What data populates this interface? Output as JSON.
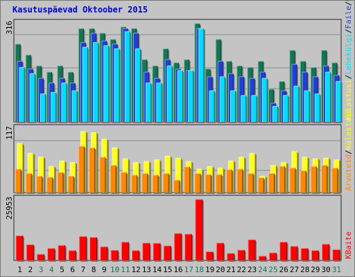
{
  "title": "Kasutuspäevad Oktoober 2015",
  "colors": {
    "background": "#c4c4c4",
    "title": "#0000cc",
    "visits": "#117755",
    "pages": "#1f3fd8",
    "files": "#00ddff",
    "hits": "#ffff22",
    "sites": "#ff8800",
    "kbytes": "#ff0000",
    "day_weekday": "#000000",
    "day_weekend": "#117755"
  },
  "chart_data": [
    {
      "type": "bar",
      "title": "Kasutuspäevad Oktoober 2015",
      "categories": [
        "1",
        "2",
        "3",
        "4",
        "5",
        "6",
        "7",
        "8",
        "9",
        "10",
        "11",
        "12",
        "13",
        "14",
        "15",
        "16",
        "17",
        "18",
        "19",
        "20",
        "21",
        "22",
        "23",
        "24",
        "25",
        "26",
        "27",
        "28",
        "29",
        "30",
        "31"
      ],
      "weekend_days": [
        "3",
        "4",
        "10",
        "11",
        "17",
        "18",
        "24",
        "25",
        "31"
      ],
      "ylim": [
        0,
        316
      ],
      "y_tick_label": "316",
      "legend": [
        "Pöördumisi",
        "Faile",
        "Lehekülgi",
        "Külastusi"
      ],
      "legend_placement": "right",
      "series": [
        {
          "name": "Pöördumisi",
          "values": [
            250,
            215,
            180,
            160,
            180,
            160,
            300,
            300,
            285,
            265,
            305,
            300,
            200,
            180,
            235,
            190,
            200,
            316,
            170,
            265,
            195,
            180,
            175,
            195,
            105,
            130,
            230,
            195,
            175,
            230,
            190
          ]
        },
        {
          "name": "Faile",
          "values": [
            195,
            170,
            140,
            125,
            140,
            125,
            255,
            285,
            260,
            250,
            300,
            285,
            160,
            140,
            200,
            170,
            165,
            300,
            145,
            195,
            155,
            145,
            140,
            160,
            60,
            100,
            185,
            160,
            145,
            180,
            150
          ]
        },
        {
          "name": "Lehekülgi",
          "values": [
            175,
            155,
            90,
            95,
            125,
            100,
            240,
            255,
            245,
            235,
            290,
            235,
            125,
            125,
            180,
            165,
            165,
            300,
            100,
            145,
            100,
            85,
            85,
            140,
            50,
            85,
            115,
            100,
            90,
            160,
            130
          ]
        }
      ]
    },
    {
      "type": "bar",
      "categories": [
        "1",
        "2",
        "3",
        "4",
        "5",
        "6",
        "7",
        "8",
        "9",
        "10",
        "11",
        "12",
        "13",
        "14",
        "15",
        "16",
        "17",
        "18",
        "19",
        "20",
        "21",
        "22",
        "23",
        "24",
        "25",
        "26",
        "27",
        "28",
        "29",
        "30",
        "31"
      ],
      "ylim": [
        0,
        117
      ],
      "y_tick_label": "117",
      "legend": [
        "Külastusi",
        "Arvuteid"
      ],
      "legend_placement": "right",
      "series": [
        {
          "name": "Külastusi",
          "values": [
            90,
            72,
            65,
            48,
            58,
            55,
            112,
            110,
            98,
            82,
            62,
            55,
            57,
            60,
            67,
            63,
            57,
            43,
            48,
            45,
            58,
            65,
            72,
            30,
            50,
            55,
            75,
            65,
            62,
            63,
            60
          ]
        },
        {
          "name": "Arvuteid",
          "values": [
            43,
            35,
            30,
            28,
            37,
            30,
            85,
            82,
            65,
            50,
            37,
            32,
            35,
            32,
            35,
            23,
            47,
            35,
            33,
            33,
            42,
            43,
            35,
            27,
            35,
            48,
            45,
            40,
            48,
            50,
            45
          ]
        }
      ]
    },
    {
      "type": "bar",
      "categories": [
        "1",
        "2",
        "3",
        "4",
        "5",
        "6",
        "7",
        "8",
        "9",
        "10",
        "11",
        "12",
        "13",
        "14",
        "15",
        "16",
        "17",
        "18",
        "19",
        "20",
        "21",
        "22",
        "23",
        "24",
        "25",
        "26",
        "27",
        "28",
        "29",
        "30",
        "31"
      ],
      "ylim": [
        0,
        25953
      ],
      "y_tick_label": "25953",
      "legend": [
        "KBaite"
      ],
      "legend_placement": "right",
      "series": [
        {
          "name": "KBaite",
          "values": [
            10500,
            6700,
            2600,
            5100,
            6400,
            4200,
            10200,
            9800,
            5800,
            4300,
            7800,
            4200,
            7400,
            7300,
            6200,
            11500,
            11200,
            25953,
            3700,
            7400,
            3000,
            4400,
            8800,
            1800,
            3200,
            7800,
            6000,
            5100,
            4200,
            6900,
            4600
          ]
        }
      ]
    }
  ]
}
